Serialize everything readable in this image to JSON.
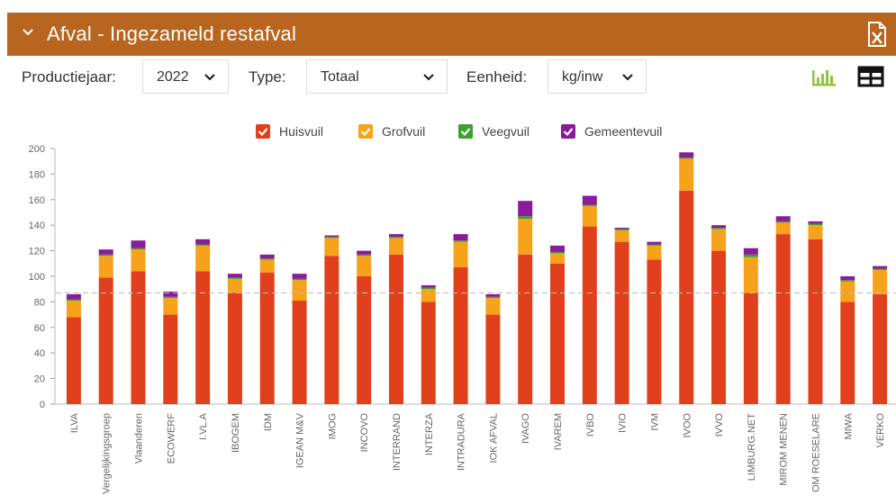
{
  "header": {
    "title": "Afval - Ingezameld restafval",
    "export_icon": "excel-export-icon",
    "expand_icon": "chevron-down-icon"
  },
  "filters": {
    "year_label": "Productiejaar:",
    "year_value": "2022",
    "type_label": "Type:",
    "type_value": "Totaal",
    "unit_label": "Eenheid:",
    "unit_value": "kg/inw"
  },
  "view_toggle": {
    "chart_icon": "bar-chart-icon",
    "table_icon": "table-icon",
    "active_color": "#8dc63f"
  },
  "colors": {
    "header_bg": "#b8651f",
    "Huisvuil": "#e0401c",
    "Grofvuil": "#f7a21b",
    "Veegvuil": "#3ca02c",
    "Gemeentevuil": "#8b1a9c"
  },
  "chart_data": {
    "type": "bar",
    "stacked": true,
    "categories": [
      "ILVA",
      "Vergelijkingsgroep",
      "Vlaanderen",
      "ECOWERF",
      "I.VL.A",
      "IBOGEM",
      "IDM",
      "IGEAN M&V",
      "IMOG",
      "INCOVO",
      "INTERRAND",
      "INTERZA",
      "INTRADURA",
      "IOK AFVAL",
      "IVAGO",
      "IVAREM",
      "IVBO",
      "IVIO",
      "IVM",
      "IVOO",
      "IVVO",
      "LIMBURG.NET",
      "MIROM MENEN",
      "OM ROESELARE",
      "MIWA",
      "VERKO"
    ],
    "series": [
      {
        "name": "Huisvuil",
        "values": [
          68,
          99,
          104,
          70,
          104,
          87,
          103,
          81,
          116,
          100,
          117,
          80,
          107,
          70,
          117,
          110,
          139,
          127,
          113,
          167,
          120,
          87,
          133,
          129,
          80,
          86
        ]
      },
      {
        "name": "Grofvuil",
        "values": [
          13,
          17,
          17,
          13,
          20,
          11,
          10,
          16,
          14,
          16,
          13,
          10,
          20,
          13,
          28,
          8,
          16,
          9,
          11,
          25,
          17,
          28,
          9,
          11,
          16,
          19
        ]
      },
      {
        "name": "Veegvuil",
        "values": [
          1,
          1,
          1,
          1,
          1,
          1,
          1,
          1,
          1,
          1,
          1,
          1,
          1,
          1,
          2,
          1,
          1,
          1,
          1,
          1,
          1,
          2,
          1,
          1,
          1,
          1
        ]
      },
      {
        "name": "Gemeentevuil",
        "values": [
          4,
          4,
          6,
          4,
          4,
          3,
          3,
          4,
          1,
          3,
          2,
          2,
          5,
          2,
          12,
          5,
          7,
          1,
          2,
          4,
          2,
          5,
          4,
          2,
          3,
          2
        ]
      }
    ],
    "legend": [
      "Huisvuil",
      "Grofvuil",
      "Veegvuil",
      "Gemeentevuil"
    ],
    "legend_position": "top-center",
    "ylim": [
      0,
      200
    ],
    "yticks": [
      0,
      20,
      40,
      60,
      80,
      100,
      120,
      140,
      160,
      180,
      200
    ],
    "reference_line": 87,
    "grid": false
  }
}
